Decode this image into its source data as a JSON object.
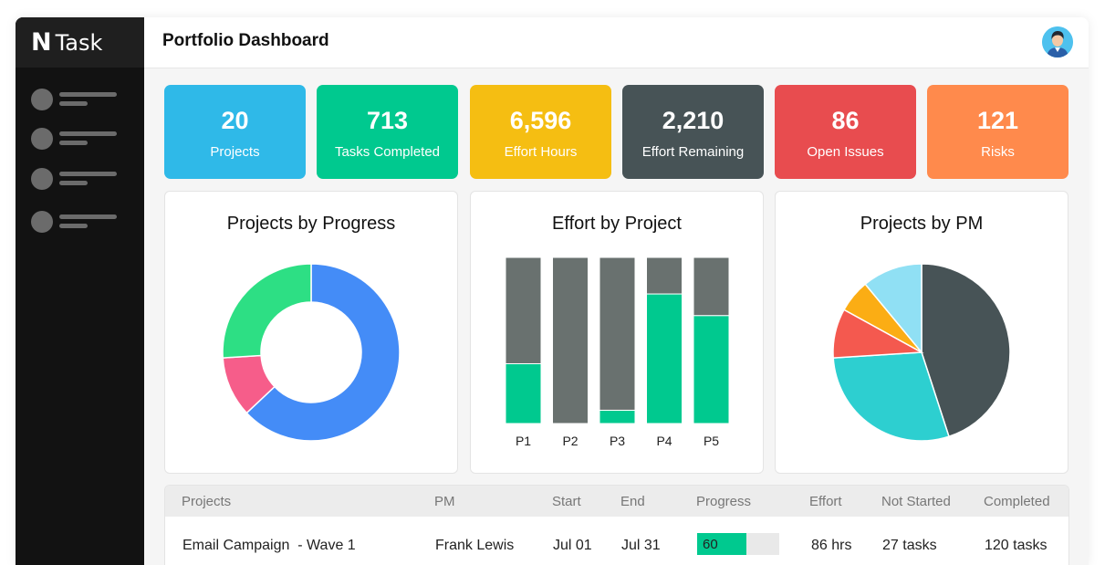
{
  "app": {
    "logo": "N",
    "name": "Task"
  },
  "header": {
    "title": "Portfolio Dashboard"
  },
  "sidebar": {
    "items": [
      {
        "icon": "menu-item-icon"
      },
      {
        "icon": "menu-item-icon"
      },
      {
        "icon": "menu-item-icon"
      },
      {
        "icon": "menu-item-icon"
      }
    ]
  },
  "kpis": [
    {
      "value": "20",
      "label": "Projects",
      "color": "#2fb9e8"
    },
    {
      "value": "713",
      "label": "Tasks Completed",
      "color": "#00c98f"
    },
    {
      "value": "6,596",
      "label": "Effort Hours",
      "color": "#f5be12"
    },
    {
      "value": "2,210",
      "label": "Effort Remaining",
      "color": "#475356"
    },
    {
      "value": "86",
      "label": "Open Issues",
      "color": "#e84c4f"
    },
    {
      "value": "121",
      "label": "Risks",
      "color": "#ff8a4c"
    }
  ],
  "cards": {
    "progress_title": "Projects by Progress",
    "effort_title": "Effort by Project",
    "pm_title": "Projects by PM"
  },
  "chart_data": [
    {
      "type": "pie",
      "title": "Projects by Progress",
      "donut": true,
      "slices": [
        {
          "value": 63,
          "color": "#448cf7"
        },
        {
          "value": 11,
          "color": "#f65d8a"
        },
        {
          "value": 26,
          "color": "#2ddf84"
        }
      ]
    },
    {
      "type": "bar",
      "title": "Effort by Project",
      "stacked": true,
      "categories": [
        "P1",
        "P2",
        "P3",
        "P4",
        "P5"
      ],
      "series": [
        {
          "values": [
            36,
            0,
            8,
            78,
            65
          ],
          "color": "#00c98f"
        },
        {
          "values": [
            64,
            100,
            92,
            22,
            35
          ],
          "color": "#69716f"
        }
      ],
      "ylim": [
        0,
        100
      ]
    },
    {
      "type": "pie",
      "title": "Projects by PM",
      "slices": [
        {
          "value": 45,
          "color": "#475356"
        },
        {
          "value": 29,
          "color": "#2dcfd0"
        },
        {
          "value": 9,
          "color": "#f4594f"
        },
        {
          "value": 6,
          "color": "#fbad14"
        },
        {
          "value": 11,
          "color": "#90e0f4"
        }
      ]
    }
  ],
  "table": {
    "headers": [
      "Projects",
      "PM",
      "Start",
      "End",
      "Progress",
      "Effort",
      "Not Started",
      "Completed"
    ],
    "rows": [
      {
        "project": "Email Campaign  - Wave 1",
        "pm": "Frank Lewis",
        "start": "Jul 01",
        "end": "Jul 31",
        "progress": "60",
        "progress_value": 60,
        "effort": "86 hrs",
        "not_started": "27 tasks",
        "completed": "120 tasks"
      }
    ]
  }
}
